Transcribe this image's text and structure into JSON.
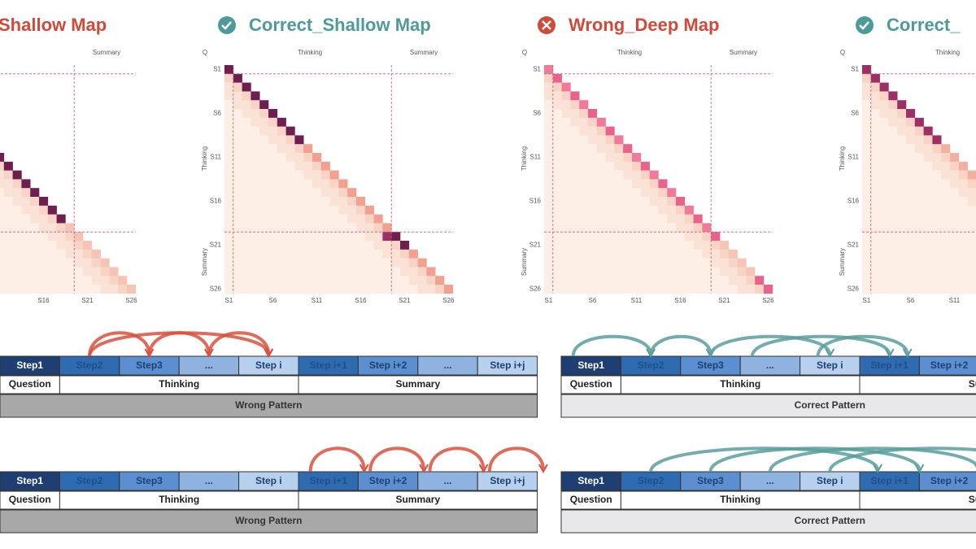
{
  "panels": [
    {
      "title": "Shallow Map",
      "top_labels": [
        "Summary"
      ],
      "left_labels": [],
      "y_ticks": [],
      "x_ticks": [
        "S16",
        "S21",
        "S26"
      ]
    },
    {
      "title": "Correct_Shallow Map",
      "top_labels": [
        "Q",
        "Thinking",
        "Summary"
      ],
      "left_labels": [
        "Thinking",
        "Summary"
      ],
      "y_ticks": [
        "S1",
        "S6",
        "S11",
        "S16",
        "S21",
        "S26"
      ],
      "x_ticks": [
        "S1",
        "S6",
        "S11",
        "S16",
        "S21",
        "S26"
      ]
    },
    {
      "title": "Wrong_Deep Map",
      "top_labels": [
        "Q",
        "Thinking",
        "Summary"
      ],
      "left_labels": [
        "Thinking",
        "Summary"
      ],
      "y_ticks": [
        "S1",
        "S6",
        "S11",
        "S16",
        "S21",
        "S26"
      ],
      "x_ticks": [
        "S1",
        "S6",
        "S11",
        "S16",
        "S21",
        "S26"
      ]
    },
    {
      "title": "Correct_",
      "top_labels": [
        "Q",
        "Thinking"
      ],
      "left_labels": [
        "Thinking",
        "Summary"
      ],
      "y_ticks": [
        "S1",
        "S6",
        "S11",
        "S16",
        "S21",
        "S26"
      ],
      "x_ticks": [
        "S1",
        "S6",
        "S11"
      ]
    }
  ],
  "patterns": [
    {
      "steps": [
        "Step1",
        "Step2",
        "Step3",
        "...",
        "Step i",
        "Step i+1",
        "Step i+2",
        "...",
        "Step i+j"
      ],
      "stages": [
        "Question",
        "Thinking",
        "Summary"
      ],
      "label": "Wrong Pattern"
    },
    {
      "steps": [
        "Step1",
        "Step2",
        "Step3",
        "...",
        "Step i",
        "Step i+1",
        "Step i+2"
      ],
      "stages": [
        "Question",
        "Thinking",
        "Sum"
      ],
      "label": "Correct Pattern"
    },
    {
      "steps": [
        "Step1",
        "Step2",
        "Step3",
        "...",
        "Step i",
        "Step i+1",
        "Step i+2",
        "...",
        "Step i+j"
      ],
      "stages": [
        "Question",
        "Thinking",
        "Summary"
      ],
      "label": "Wrong Pattern"
    },
    {
      "steps": [
        "Step1",
        "Step2",
        "Step3",
        "...",
        "Step i",
        "Step i+1",
        "Step i+2"
      ],
      "stages": [
        "Question",
        "Thinking",
        "Sum"
      ],
      "label": "Correct Pattern"
    }
  ]
}
